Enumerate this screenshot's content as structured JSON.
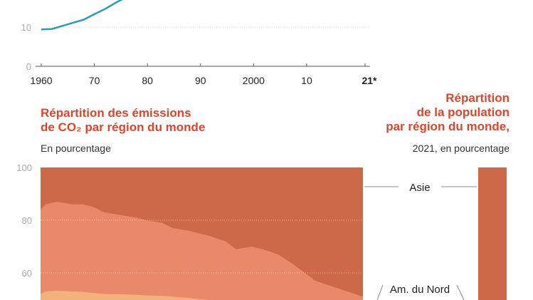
{
  "chart_data": [
    {
      "type": "line",
      "title": "",
      "x_ticks": [
        "1960",
        "70",
        "80",
        "90",
        "2000",
        "10",
        "21*"
      ],
      "x_tick_years": [
        1960,
        1970,
        1980,
        1990,
        2000,
        2010,
        2021
      ],
      "y_ticks": [
        0,
        10
      ],
      "xlim": [
        1960,
        2021
      ],
      "series": [
        {
          "x": [
            1960,
            1962,
            1964,
            1966,
            1968,
            1970,
            1972,
            1974,
            1976
          ],
          "y": [
            9.4,
            9.5,
            10.3,
            11.1,
            11.9,
            13.3,
            14.6,
            16.2,
            17.6
          ]
        }
      ],
      "grid": true,
      "color": "#2a9bb0"
    },
    {
      "type": "area",
      "title_lines": [
        "Répartition des émissions",
        "de CO₂ par région du monde"
      ],
      "subtitle": "En pourcentage",
      "y_ticks": [
        60,
        80,
        100
      ],
      "xlim": [
        1960,
        2021
      ],
      "ylim_visible": [
        50,
        100
      ],
      "x": [
        1960,
        1961,
        1963,
        1966,
        1968,
        1970,
        1972,
        1975,
        1978,
        1980,
        1983,
        1985,
        1988,
        1990,
        1992,
        1995,
        1997,
        2000,
        2002,
        2005,
        2008,
        2010,
        2012,
        2015,
        2018,
        2021
      ],
      "series": [
        {
          "name": "Asie",
          "color": "#cc6a48",
          "top": 100
        },
        {
          "color": "#e8896a",
          "top": [
            84,
            86,
            87,
            86,
            86,
            85,
            83,
            82,
            81,
            80,
            79,
            77,
            76,
            75,
            74,
            72,
            69,
            70,
            69,
            67,
            63,
            60,
            57,
            55,
            53,
            51
          ]
        },
        {
          "color": "#f2b27a",
          "top": [
            52,
            53,
            53.2,
            53,
            52.8,
            52.4,
            52,
            51.9,
            51.7,
            51.5,
            51.3,
            51,
            50.5,
            50,
            49.8,
            49.6,
            49.5,
            49.5,
            49.3,
            49,
            48.8,
            48.5,
            48.3,
            48,
            47.8,
            47.6
          ]
        }
      ],
      "grid": true
    },
    {
      "type": "bar",
      "title_lines": [
        "Répartition",
        "de la population",
        "par région du monde,"
      ],
      "subtitle": "2021, en pourcentage",
      "color": "#cc6a48"
    }
  ],
  "labels": {
    "asia": "Asie",
    "north_america": "Am. du Nord"
  }
}
